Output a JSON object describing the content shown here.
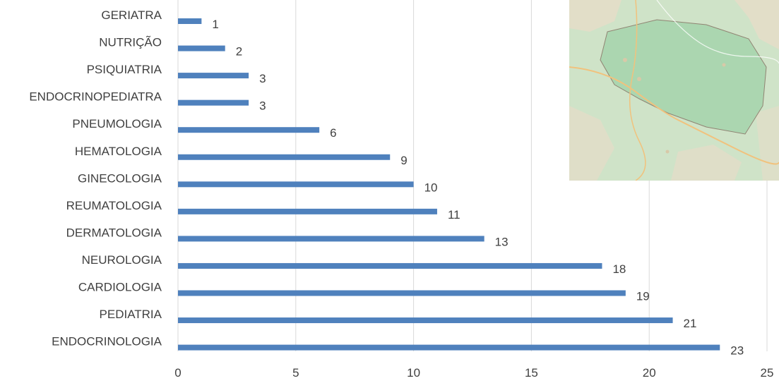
{
  "chart_data": {
    "type": "bar",
    "orientation": "horizontal",
    "categories": [
      "GERIATRA",
      "NUTRIÇÃO",
      "PSIQUIATRIA",
      "ENDOCRINOPEDIATRA",
      "PNEUMOLOGIA",
      "HEMATOLOGIA",
      "GINECOLOGIA",
      "REUMATOLOGIA",
      "DERMATOLOGIA",
      "NEUROLOGIA",
      "CARDIOLOGIA",
      "PEDIATRIA",
      "ENDOCRINOLOGIA"
    ],
    "values": [
      1,
      2,
      3,
      3,
      6,
      9,
      10,
      11,
      13,
      18,
      19,
      21,
      23
    ],
    "xlim": [
      0,
      25
    ],
    "x_ticks": [
      0,
      5,
      10,
      15,
      20,
      25
    ],
    "title": "",
    "xlabel": "",
    "ylabel": "",
    "grid": "vertical",
    "legend": "none",
    "data_labels": true
  },
  "colors": {
    "bar": "#4f81bd",
    "grid": "#d9d9d9",
    "text": "#404040",
    "map_land": "#cfe3c8",
    "map_region": "#a8d5ae",
    "map_patch": "#e6dcc8",
    "map_road": "#f1c27d"
  },
  "map_inset": {
    "description_icon": "map-icon"
  }
}
